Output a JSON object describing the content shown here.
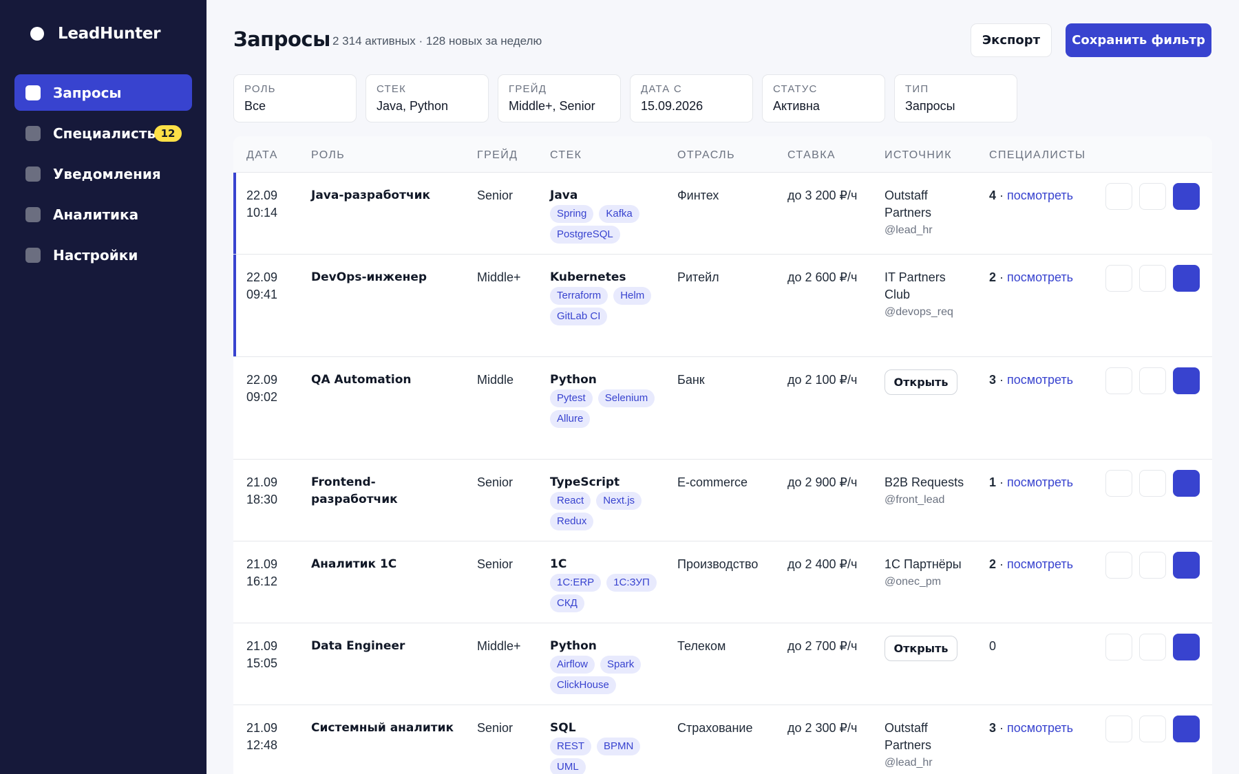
{
  "app": {
    "name": "LeadHunter"
  },
  "sidebar": {
    "items": [
      {
        "label": "Запросы",
        "active": true
      },
      {
        "label": "Специалисты",
        "badge": "12"
      },
      {
        "label": "Уведомления"
      },
      {
        "label": "Аналитика"
      },
      {
        "label": "Настройки"
      }
    ]
  },
  "header": {
    "title": "Запросы",
    "subtitle": "2 314 активных · 128 новых за неделю",
    "export_label": "Экспорт",
    "save_label": "Сохранить фильтр"
  },
  "filters": [
    {
      "label": "Роль",
      "value": "Все"
    },
    {
      "label": "Стек",
      "value": "Java, Python"
    },
    {
      "label": "Грейд",
      "value": "Middle+, Senior"
    },
    {
      "label": "Дата с",
      "value": "15.09.2026"
    },
    {
      "label": "Статус",
      "value": "Активна"
    },
    {
      "label": "Тип",
      "value": "Запросы"
    }
  ],
  "table": {
    "columns": [
      "Дата",
      "Роль",
      "Грейд",
      "Стек",
      "Отрасль",
      "Ставка",
      "Источник",
      "Специалисты"
    ],
    "link_label": "посмотреть",
    "open_label": "Открыть",
    "rows": [
      {
        "date": "22.09",
        "time": "10:14",
        "role": "Java-разработчик",
        "grade": "Senior",
        "stack": "Java",
        "tags": [
          "Spring",
          "Kafka",
          "PostgreSQL"
        ],
        "industry": "Финтех",
        "rate": "до 3 200 ₽/ч",
        "source": "Outstaff Partners",
        "handle": "@lead_hr",
        "spec_count": "4",
        "spec_sep": " · "
      },
      {
        "date": "22.09",
        "time": "09:41",
        "role": "DevOps-инженер",
        "grade": "Middle+",
        "stack": "Kubernetes",
        "tags": [
          "Terraform",
          "Helm",
          "GitLab CI"
        ],
        "industry": "Ритейл",
        "rate": "до 2 600 ₽/ч",
        "source": "IT Partners Club",
        "handle": "@devops_req",
        "spec_count": "2",
        "spec_sep": " · "
      },
      {
        "date": "22.09",
        "time": "09:02",
        "role": "QA Automation",
        "grade": "Middle",
        "stack": "Python",
        "tags": [
          "Pytest",
          "Selenium",
          "Allure"
        ],
        "industry": "Банк",
        "rate": "до 2 100 ₽/ч",
        "source": "",
        "handle": "",
        "spec_count": "3",
        "spec_sep": " · "
      },
      {
        "date": "21.09",
        "time": "18:30",
        "role": "Frontend-разработчик",
        "grade": "Senior",
        "stack": "TypeScript",
        "tags": [
          "React",
          "Next.js",
          "Redux"
        ],
        "industry": "E-commerce",
        "rate": "до 2 900 ₽/ч",
        "source": "B2B Requests",
        "handle": "@front_lead",
        "spec_count": "1",
        "spec_sep": " · "
      },
      {
        "date": "21.09",
        "time": "16:12",
        "role": "Аналитик 1С",
        "grade": "Senior",
        "stack": "1С",
        "tags": [
          "1С:ERP",
          "1С:ЗУП",
          "СКД"
        ],
        "industry": "Производство",
        "rate": "до 2 400 ₽/ч",
        "source": "1С Партнёры",
        "handle": "@onec_pm",
        "spec_count": "2",
        "spec_sep": " · "
      },
      {
        "date": "21.09",
        "time": "15:05",
        "role": "Data Engineer",
        "grade": "Middle+",
        "stack": "Python",
        "tags": [
          "Airflow",
          "Spark",
          "ClickHouse"
        ],
        "industry": "Телеком",
        "rate": "до 2 700 ₽/ч",
        "source": "",
        "handle": "",
        "spec_count": "0",
        "spec_sep": ""
      },
      {
        "date": "21.09",
        "time": "12:48",
        "role": "Системный аналитик",
        "grade": "Senior",
        "stack": "SQL",
        "tags": [
          "REST",
          "BPMN",
          "UML"
        ],
        "industry": "Страхование",
        "rate": "до 2 300 ₽/ч",
        "source": "Outstaff Partners",
        "handle": "@lead_hr",
        "spec_count": "3",
        "spec_sep": " · "
      }
    ]
  }
}
